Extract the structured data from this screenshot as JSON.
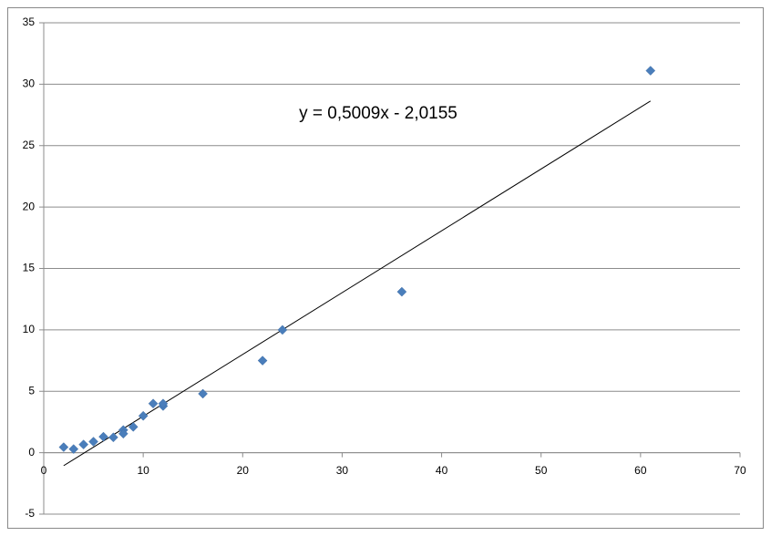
{
  "chart_data": {
    "type": "scatter",
    "series": [
      {
        "color": "#4a7ebb",
        "x": [
          2,
          3,
          4,
          5,
          6,
          7,
          8,
          8,
          9,
          10,
          11,
          12,
          12,
          16,
          22,
          24,
          36,
          61
        ],
        "values": [
          0.45,
          0.3,
          0.67,
          0.9,
          1.3,
          1.25,
          1.85,
          1.55,
          2.1,
          3.0,
          4.0,
          3.8,
          4.0,
          4.8,
          7.5,
          10.0,
          13.1,
          31.1
        ]
      }
    ],
    "trendline": {
      "label": "y = 0,5009x - 2,0155",
      "color": "#000000"
    },
    "xlim": [
      0,
      70
    ],
    "xticks": [
      0,
      10,
      20,
      30,
      40,
      50,
      60,
      70
    ],
    "ylim": [
      -5,
      35
    ],
    "yticks": [
      -5,
      0,
      5,
      10,
      15,
      20,
      25,
      30,
      35
    ],
    "grid": true
  }
}
